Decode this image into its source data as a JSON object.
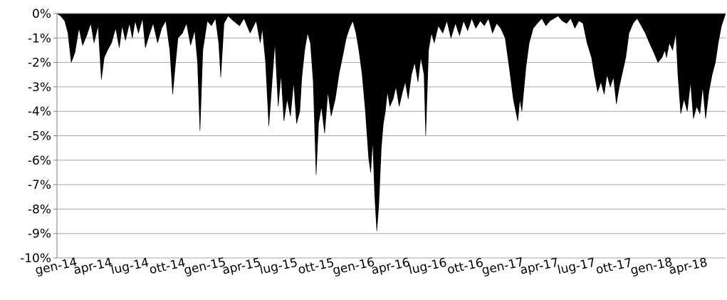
{
  "chart_data": {
    "type": "area",
    "title": "",
    "xlabel": "",
    "ylabel": "",
    "ylim": [
      -10,
      0
    ],
    "y_ticks": [
      0,
      -1,
      -2,
      -3,
      -4,
      -5,
      -6,
      -7,
      -8,
      -9,
      -10
    ],
    "y_tick_labels": [
      "0%",
      "-1%",
      "-2%",
      "-3%",
      "-4%",
      "-5%",
      "-6%",
      "-7%",
      "-8%",
      "-9%",
      "-10%"
    ],
    "x_range": [
      "2014-01-01",
      "2018-06-30"
    ],
    "x_tick_labels": [
      "gen-14",
      "apr-14",
      "lug-14",
      "ott-14",
      "gen-15",
      "apr-15",
      "lug-15",
      "ott-15",
      "gen-16",
      "apr-16",
      "lug-16",
      "ott-16",
      "gen-17",
      "apr-17",
      "lug-17",
      "ott-17",
      "gen-18",
      "apr-18"
    ],
    "x_tick_dates": [
      "2014-01-01",
      "2014-04-01",
      "2014-07-01",
      "2014-10-01",
      "2015-01-01",
      "2015-04-01",
      "2015-07-01",
      "2015-10-01",
      "2016-01-01",
      "2016-04-01",
      "2016-07-01",
      "2016-10-01",
      "2017-01-01",
      "2017-04-01",
      "2017-07-01",
      "2017-10-01",
      "2018-01-01",
      "2018-04-01"
    ],
    "grid": true,
    "legend": "none",
    "fill_color": "#000000",
    "grid_color": "#a6a6a6",
    "series": [
      {
        "x": [
          "2014-01-01",
          "2014-01-10",
          "2014-01-20",
          "2014-01-28",
          "2014-02-05",
          "2014-02-14",
          "2014-02-24",
          "2014-03-05",
          "2014-03-15",
          "2014-03-25",
          "2014-04-02",
          "2014-04-12",
          "2014-04-20",
          "2014-04-27",
          "2014-05-05",
          "2014-05-15",
          "2014-05-25",
          "2014-06-03",
          "2014-06-10",
          "2014-06-18",
          "2014-06-28",
          "2014-07-05",
          "2014-07-12",
          "2014-07-20",
          "2014-07-30",
          "2014-08-06",
          "2014-08-15",
          "2014-08-25",
          "2014-09-05",
          "2014-09-15",
          "2014-09-25",
          "2014-10-05",
          "2014-10-12",
          "2014-10-18",
          "2014-10-25",
          "2014-11-05",
          "2014-11-15",
          "2014-11-25",
          "2014-12-05",
          "2014-12-12",
          "2014-12-18",
          "2014-12-25",
          "2015-01-05",
          "2015-01-15",
          "2015-01-25",
          "2015-02-02",
          "2015-02-07",
          "2015-02-15",
          "2015-02-25",
          "2015-03-10",
          "2015-03-25",
          "2015-04-05",
          "2015-04-20",
          "2015-05-05",
          "2015-05-15",
          "2015-05-20",
          "2015-05-28",
          "2015-06-05",
          "2015-06-12",
          "2015-06-20",
          "2015-06-28",
          "2015-07-05",
          "2015-07-12",
          "2015-07-20",
          "2015-07-28",
          "2015-08-05",
          "2015-08-12",
          "2015-08-20",
          "2015-08-25",
          "2015-09-01",
          "2015-09-08",
          "2015-09-15",
          "2015-09-22",
          "2015-09-29",
          "2015-10-05",
          "2015-10-12",
          "2015-10-20",
          "2015-10-28",
          "2015-11-05",
          "2015-11-15",
          "2015-11-25",
          "2015-12-05",
          "2015-12-12",
          "2015-12-20",
          "2015-12-28",
          "2016-01-05",
          "2016-01-12",
          "2016-01-20",
          "2016-01-28",
          "2016-02-05",
          "2016-02-10",
          "2016-02-15",
          "2016-02-20",
          "2016-02-25",
          "2016-03-01",
          "2016-03-07",
          "2016-03-12",
          "2016-03-17",
          "2016-03-22",
          "2016-03-28",
          "2016-04-05",
          "2016-04-12",
          "2016-04-20",
          "2016-04-28",
          "2016-05-05",
          "2016-05-12",
          "2016-05-20",
          "2016-05-28",
          "2016-06-05",
          "2016-06-12",
          "2016-06-20",
          "2016-06-24",
          "2016-06-27",
          "2016-07-01",
          "2016-07-08",
          "2016-07-15",
          "2016-07-25",
          "2016-08-05",
          "2016-08-15",
          "2016-08-25",
          "2016-09-05",
          "2016-09-15",
          "2016-09-25",
          "2016-10-05",
          "2016-10-15",
          "2016-10-25",
          "2016-11-05",
          "2016-11-15",
          "2016-11-25",
          "2016-12-05",
          "2016-12-15",
          "2016-12-25",
          "2017-01-05",
          "2017-01-15",
          "2017-01-25",
          "2017-02-05",
          "2017-02-10",
          "2017-02-15",
          "2017-02-25",
          "2017-03-05",
          "2017-03-15",
          "2017-03-25",
          "2017-04-05",
          "2017-04-15",
          "2017-04-25",
          "2017-05-05",
          "2017-05-15",
          "2017-05-25",
          "2017-06-05",
          "2017-06-15",
          "2017-06-25",
          "2017-07-05",
          "2017-07-15",
          "2017-07-25",
          "2017-08-05",
          "2017-08-12",
          "2017-08-20",
          "2017-08-28",
          "2017-09-05",
          "2017-09-12",
          "2017-09-20",
          "2017-09-28",
          "2017-10-05",
          "2017-10-12",
          "2017-10-20",
          "2017-10-28",
          "2017-11-05",
          "2017-11-15",
          "2017-11-25",
          "2017-12-05",
          "2017-12-15",
          "2017-12-25",
          "2018-01-05",
          "2018-01-15",
          "2018-01-25",
          "2018-02-01",
          "2018-02-05",
          "2018-02-12",
          "2018-02-20",
          "2018-02-28",
          "2018-03-05",
          "2018-03-12",
          "2018-03-20",
          "2018-03-28",
          "2018-04-05",
          "2018-04-12",
          "2018-04-20",
          "2018-04-28",
          "2018-05-05",
          "2018-05-12",
          "2018-05-20",
          "2018-05-28",
          "2018-06-05",
          "2018-06-12",
          "2018-06-20",
          "2018-06-30"
        ],
        "y": [
          0,
          -0.1,
          -0.3,
          -0.8,
          -2.0,
          -1.6,
          -0.6,
          -1.3,
          -0.9,
          -0.4,
          -1.2,
          -0.5,
          -2.7,
          -1.8,
          -1.5,
          -1.2,
          -0.6,
          -1.4,
          -0.5,
          -1.1,
          -0.4,
          -1.0,
          -0.3,
          -0.8,
          -0.2,
          -1.4,
          -0.9,
          -0.4,
          -1.2,
          -0.6,
          -0.3,
          -1.5,
          -3.3,
          -2.2,
          -1.0,
          -0.8,
          -0.4,
          -1.3,
          -0.7,
          -2.0,
          -4.8,
          -1.5,
          -0.3,
          -0.5,
          -0.2,
          -1.2,
          -2.6,
          -0.4,
          -0.1,
          -0.3,
          -0.5,
          -0.2,
          -0.8,
          -0.3,
          -1.2,
          -0.6,
          -2.0,
          -4.6,
          -3.0,
          -1.2,
          -3.8,
          -2.5,
          -4.4,
          -3.5,
          -4.2,
          -2.8,
          -4.5,
          -4.0,
          -2.6,
          -1.5,
          -0.8,
          -1.2,
          -2.8,
          -6.6,
          -4.5,
          -3.8,
          -4.9,
          -3.2,
          -4.2,
          -3.5,
          -2.4,
          -1.6,
          -1.0,
          -0.6,
          -0.3,
          -0.8,
          -1.5,
          -2.5,
          -4.0,
          -5.9,
          -6.5,
          -5.2,
          -7.5,
          -8.9,
          -7.8,
          -5.5,
          -4.5,
          -4.0,
          -3.2,
          -3.8,
          -3.5,
          -3.0,
          -3.8,
          -3.2,
          -2.8,
          -3.5,
          -2.5,
          -2.0,
          -2.8,
          -1.8,
          -2.5,
          -5.0,
          -3.5,
          -1.5,
          -0.8,
          -1.2,
          -0.5,
          -0.8,
          -0.3,
          -1.0,
          -0.4,
          -0.9,
          -0.3,
          -0.7,
          -0.2,
          -0.6,
          -0.3,
          -0.5,
          -0.2,
          -0.8,
          -0.4,
          -0.6,
          -1.0,
          -2.2,
          -3.5,
          -4.4,
          -3.5,
          -4.0,
          -2.2,
          -1.2,
          -0.6,
          -0.4,
          -0.2,
          -0.5,
          -0.3,
          -0.2,
          -0.1,
          -0.3,
          -0.4,
          -0.2,
          -0.6,
          -0.3,
          -0.4,
          -1.2,
          -1.8,
          -2.5,
          -3.2,
          -2.8,
          -3.3,
          -2.5,
          -3.0,
          -2.6,
          -3.7,
          -3.0,
          -2.4,
          -1.8,
          -0.8,
          -0.4,
          -0.2,
          -0.5,
          -0.8,
          -1.2,
          -1.6,
          -2.0,
          -1.8,
          -1.5,
          -1.8,
          -1.2,
          -1.5,
          -0.8,
          -2.5,
          -4.1,
          -3.5,
          -4.0,
          -2.8,
          -4.3,
          -3.8,
          -4.1,
          -3.0,
          -4.3,
          -3.2,
          -2.5,
          -2.0,
          -1.2,
          -0.5,
          0
        ]
      }
    ]
  }
}
